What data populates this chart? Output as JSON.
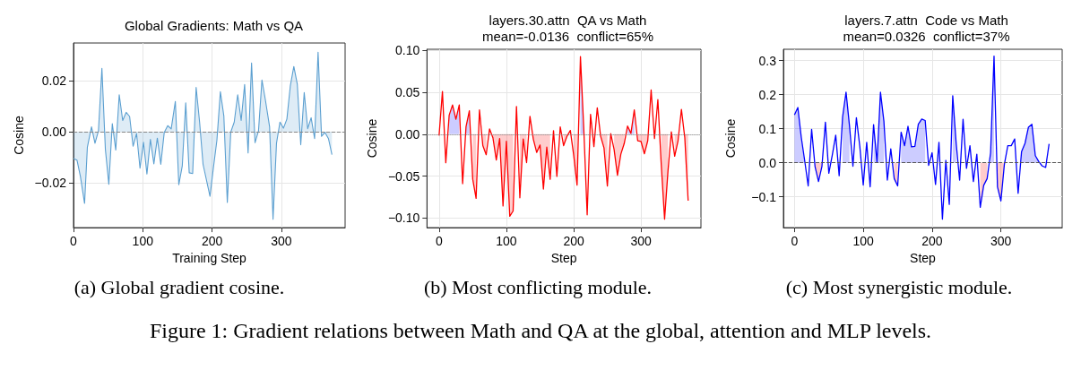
{
  "chart_data": [
    {
      "type": "area",
      "title": "Global Gradients: Math vs QA",
      "xlabel": "Training Step",
      "ylabel": "Cosine",
      "marker": "none",
      "grid": true,
      "annotations": [
        "(a) Global gradient cosine.",
        "Figure 1: Gradient relations between Math and QA at the global, attention and MLP levels."
      ],
      "xlim": [
        0,
        392
      ],
      "xticks": [
        0,
        100,
        200,
        300
      ],
      "ylim": [
        -0.0375,
        0.0349
      ],
      "yticks": [
        {
          "value": -0.02,
          "label": "−0.02"
        },
        {
          "value": 0,
          "label": "0.00"
        },
        {
          "value": 0.02,
          "label": "0.02"
        }
      ],
      "ref_lines": [
        {
          "axis": "y",
          "value": 0,
          "color": "#888888",
          "line_style": "dashed"
        }
      ],
      "x": [
        0,
        5,
        10,
        16,
        20,
        26,
        31,
        36,
        41,
        46,
        51,
        56,
        61,
        66,
        71,
        76,
        81,
        86,
        91,
        96,
        101,
        106,
        111,
        116,
        121,
        126,
        131,
        136,
        141,
        147,
        152,
        157,
        162,
        167,
        172,
        177,
        182,
        187,
        197,
        202,
        207,
        212,
        217,
        222,
        227,
        232,
        237,
        242,
        247,
        252,
        257,
        262,
        267,
        272,
        277,
        283,
        288,
        293,
        298,
        303,
        308,
        313,
        318,
        323,
        328,
        333,
        338,
        343,
        348,
        353,
        358,
        363,
        368,
        373
      ],
      "series": [
        {
          "color": "#5b9fd0",
          "values": [
            -0.0104,
            -0.011,
            -0.0175,
            -0.028,
            -0.006,
            0.002,
            -0.0044,
            0.0004,
            0.025,
            -0.0068,
            -0.0205,
            0.0033,
            -0.0071,
            0.0146,
            0.0045,
            0.0077,
            0.0061,
            -0.0056,
            -0.0006,
            -0.0142,
            -0.004,
            -0.0165,
            -0.0029,
            -0.0125,
            -0.0024,
            -0.0127,
            -0.0001,
            0.0025,
            0.0012,
            0.012,
            -0.0207,
            -0.0133,
            0.0114,
            -0.016,
            -0.0163,
            0.0175,
            0.0039,
            -0.0127,
            -0.0252,
            -0.0139,
            -0.0032,
            0.0158,
            0.0063,
            -0.0276,
            0,
            0.0039,
            0.0146,
            0.0045,
            0.0186,
            -0.0082,
            0.0271,
            -0.0042,
            0.0004,
            0.0204,
            0.0125,
            0.0021,
            -0.0342,
            -0.0044,
            0.0039,
            0.0015,
            0.0051,
            0.0182,
            0.0257,
            0.0188,
            -0.005,
            0.0155,
            0.0013,
            0.0056,
            -0.0026,
            0.0313,
            -0.0017,
            -0.0002,
            -0.0026,
            -0.0089
          ]
        }
      ]
    },
    {
      "type": "line",
      "title": "layers.30.attn  QA vs Math\nmean=-0.0136  conflict=65%",
      "xlabel": "Step",
      "ylabel": "Cosine",
      "marker": "none",
      "grid": true,
      "annotations": [
        "(b) Most conflicting module."
      ],
      "xlim": [
        -18,
        389
      ],
      "xticks": [
        0,
        100,
        200,
        300
      ],
      "ylim": [
        -0.1115,
        0.1014
      ],
      "yticks": [
        {
          "value": -0.1,
          "label": "−0.10"
        },
        {
          "value": -0.05,
          "label": "−0.05"
        },
        {
          "value": 0,
          "label": "0.00"
        },
        {
          "value": 0.05,
          "label": "0.05"
        },
        {
          "value": 0.1,
          "label": "0.10"
        }
      ],
      "ref_lines": [
        {
          "axis": "y",
          "value": 0,
          "color": "#888888",
          "line_style": "dotted"
        }
      ],
      "x": [
        0,
        5,
        10,
        15,
        20,
        25,
        30,
        35,
        40,
        45,
        50,
        55,
        60,
        65,
        70,
        75,
        80,
        85,
        90,
        95,
        100,
        105,
        110,
        115,
        120,
        125,
        130,
        135,
        140,
        145,
        150,
        155,
        160,
        165,
        170,
        175,
        180,
        185,
        190,
        195,
        200,
        205,
        210,
        215,
        220,
        225,
        230,
        235,
        240,
        245,
        250,
        255,
        260,
        265,
        270,
        275,
        280,
        285,
        290,
        295,
        300,
        305,
        310,
        315,
        320,
        325,
        330,
        335,
        340,
        345,
        350,
        355,
        360,
        365,
        370
      ],
      "series": [
        {
          "type": "area",
          "color": "#0000ff",
          "values": [
            null,
            null,
            null,
            0.0227,
            0.035,
            0.0178,
            0.035,
            null,
            0.0087,
            0.028,
            null,
            null,
            null,
            null,
            null,
            null,
            null,
            null,
            null,
            null,
            null,
            null,
            null,
            null,
            null,
            null,
            null,
            null,
            null,
            null,
            null,
            null,
            null,
            null,
            null,
            null,
            null,
            null,
            null,
            null,
            null,
            null,
            0.0927,
            0.0056,
            null,
            null,
            null,
            null,
            null,
            null,
            null,
            null,
            null,
            null,
            null,
            null,
            0.0098,
            0.001,
            0.029,
            null,
            null,
            null,
            null,
            null,
            null,
            null,
            null,
            null,
            null,
            null,
            null,
            null,
            null,
            null,
            null
          ]
        },
        {
          "type": "area",
          "color": "#ff0000",
          "values": [
            null,
            null,
            null,
            null,
            null,
            null,
            null,
            null,
            null,
            null,
            -0.0538,
            -0.0766,
            null,
            -0.0136,
            -0.0245,
            null,
            -0.0042,
            -0.0308,
            -0.0052,
            -0.0857,
            -0.0084,
            -0.0979,
            -0.0916,
            null,
            -0.0759,
            -0.0056,
            -0.0339,
            null,
            -0.0059,
            -0.0217,
            -0.0129,
            -0.0654,
            -0.0154,
            -0.0538,
            null,
            null,
            null,
            -0.0136,
            -0.0024,
            null,
            -0.0252,
            -0.0608,
            null,
            null,
            null,
            null,
            null,
            null,
            -0.0024,
            -0.0164,
            -0.0619,
            null,
            -0.0182,
            -0.049,
            -0.0238,
            -0.0112,
            null,
            null,
            null,
            -0.0077,
            -0.0087,
            -0.0234,
            -0.0077,
            null,
            null,
            null,
            -0.0357,
            -0.1014,
            -0.0444,
            null,
            -0.0262,
            -0.0077,
            null,
            -0.0042,
            -0.0794
          ]
        },
        {
          "color": "#ff0000",
          "values": [
            -0.0017,
            0.051,
            -0.034,
            0.0227,
            0.035,
            0.0178,
            0.035,
            -0.059,
            0.0087,
            0.028,
            -0.0538,
            -0.0766,
            0.029,
            -0.0136,
            -0.0245,
            0.0063,
            -0.0042,
            -0.0308,
            -0.0052,
            -0.0857,
            -0.0084,
            -0.0979,
            -0.0916,
            0.0332,
            -0.0759,
            -0.0056,
            -0.0339,
            0.0213,
            -0.0059,
            -0.0217,
            -0.0129,
            -0.0654,
            -0.0154,
            -0.0538,
            0.0042,
            -0.0503,
            0.0087,
            -0.0136,
            -0.0024,
            0.0045,
            -0.0252,
            -0.0608,
            0.0927,
            0.0056,
            -0.0962,
            0.0238,
            -0.0147,
            0.0315,
            -0.0024,
            -0.0164,
            -0.0619,
            0.0007,
            -0.0182,
            -0.049,
            -0.0238,
            -0.0112,
            0.0098,
            0.001,
            0.029,
            -0.0077,
            -0.0087,
            -0.0234,
            -0.0077,
            0.0528,
            -0.0052,
            0.0413,
            -0.0357,
            -0.1014,
            -0.0444,
            0.0028,
            -0.0262,
            -0.0077,
            0.0297,
            -0.0042,
            -0.0794
          ]
        }
      ]
    },
    {
      "type": "line",
      "title": "layers.7.attn  Code vs Math\nmean=0.0326  conflict=37%",
      "xlabel": "Step",
      "ylabel": "Cosine",
      "marker": "none",
      "grid": true,
      "annotations": [
        "(c) Most synergistic module."
      ],
      "xlim": [
        -16,
        389
      ],
      "xticks": [
        0,
        100,
        200,
        300
      ],
      "ylim": [
        -0.1905,
        0.333
      ],
      "yticks": [
        {
          "value": -0.1,
          "label": "−0.1"
        },
        {
          "value": 0,
          "label": "0.0"
        },
        {
          "value": 0.1,
          "label": "0.1"
        },
        {
          "value": 0.2,
          "label": "0.2"
        },
        {
          "value": 0.3,
          "label": "0.3"
        }
      ],
      "ref_lines": [
        {
          "axis": "y",
          "value": 0,
          "color": "#555555",
          "line_style": "dashed"
        }
      ],
      "x": [
        0,
        5,
        10,
        15,
        20,
        25,
        30,
        35,
        40,
        45,
        50,
        55,
        60,
        65,
        70,
        75,
        80,
        85,
        90,
        95,
        100,
        105,
        110,
        115,
        120,
        125,
        130,
        135,
        140,
        145,
        150,
        155,
        160,
        165,
        170,
        175,
        180,
        185,
        190,
        195,
        200,
        205,
        210,
        215,
        220,
        225,
        230,
        235,
        240,
        245,
        250,
        255,
        260,
        265,
        270,
        275,
        280,
        285,
        290,
        295,
        300,
        305,
        310,
        315,
        320,
        325,
        330,
        335,
        340,
        345,
        350,
        355,
        360,
        365,
        370
      ],
      "series": [
        {
          "type": "area",
          "color": "#0000ff",
          "values": [
            0.1405,
            0.162,
            0.074,
            0.005,
            null,
            null,
            null,
            null,
            null,
            null,
            null,
            null,
            null,
            null,
            0.1345,
            0.207,
            0.1086,
            null,
            null,
            null,
            null,
            null,
            null,
            0.112,
            0.0009,
            0.207,
            0.1216,
            null,
            null,
            null,
            null,
            0.0897,
            0.05,
            0.1069,
            0.0466,
            0.0483,
            0.113,
            0.1284,
            0.124,
            null,
            null,
            null,
            null,
            null,
            null,
            null,
            0.1966,
            0.0569,
            null,
            null,
            null,
            null,
            null,
            null,
            null,
            null,
            null,
            0.0293,
            0.313,
            null,
            null,
            null,
            null,
            null,
            null,
            null,
            0.0328,
            0.0569,
            0.1043,
            0.113,
            0.0207,
            0.0034,
            null,
            null,
            null
          ]
        },
        {
          "type": "area",
          "color": "#ff0000",
          "values": [
            null,
            null,
            null,
            null,
            null,
            null,
            -0.012,
            -0.055,
            -0.0103,
            null,
            null,
            null,
            null,
            null,
            null,
            null,
            null,
            null,
            null,
            null,
            null,
            null,
            null,
            null,
            null,
            null,
            null,
            null,
            null,
            -0.0466,
            -0.068,
            null,
            null,
            null,
            null,
            null,
            null,
            null,
            null,
            null,
            null,
            null,
            null,
            null,
            null,
            null,
            null,
            null,
            null,
            null,
            null,
            null,
            null,
            null,
            -0.131,
            -0.0664,
            -0.0466,
            null,
            null,
            -0.0707,
            -0.112,
            -0.0052,
            null,
            null,
            null,
            null,
            null,
            null,
            null,
            null,
            null,
            null,
            null,
            null,
            null
          ]
        },
        {
          "color": "#0000ff",
          "values": [
            0.1405,
            0.162,
            0.074,
            0.005,
            -0.068,
            0.098,
            -0.012,
            -0.055,
            -0.0103,
            0.119,
            -0.031,
            0.0224,
            0.081,
            -0.038,
            0.1345,
            0.207,
            0.1086,
            -0.0103,
            0.132,
            0.048,
            -0.0655,
            0.06,
            -0.0707,
            0.112,
            0.0009,
            0.207,
            0.1216,
            -0.051,
            0.041,
            -0.0466,
            -0.068,
            0.0897,
            0.05,
            0.1069,
            0.0466,
            0.0483,
            0.113,
            0.1284,
            0.124,
            -0.0078,
            0.0293,
            -0.0638,
            0.06,
            -0.1655,
            0.0069,
            -0.1224,
            0.1966,
            0.0569,
            -0.051,
            0.1276,
            -0.0164,
            0.05,
            -0.055,
            0.025,
            -0.131,
            -0.0664,
            -0.0466,
            0.0293,
            0.313,
            -0.0707,
            -0.112,
            -0.0052,
            0.05,
            0.05,
            0.0698,
            -0.0897,
            0.0328,
            0.0569,
            0.1043,
            0.113,
            0.0207,
            0.0034,
            -0.0095,
            -0.0138,
            0.0552
          ]
        }
      ]
    }
  ]
}
